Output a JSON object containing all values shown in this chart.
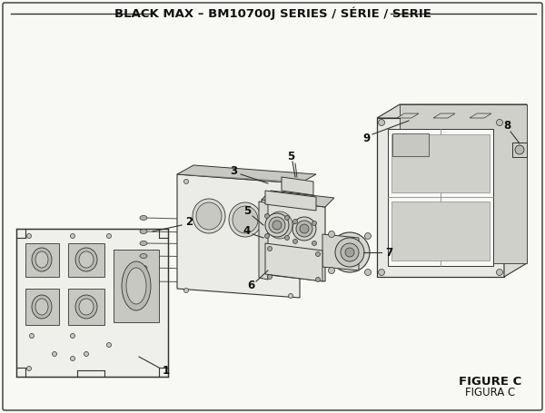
{
  "title": "BLACK MAX – BM10700J SERIES / SÉRIE / SERIE",
  "figure_label": "FIGURE C",
  "figura_label": "FIGURA C",
  "bg_color": "#f8f8f5",
  "border_color": "#333333",
  "line_color": "#333333",
  "fill_light": "#f0f0ec",
  "fill_mid": "#e0e0db",
  "fill_dark": "#c8c8c3",
  "text_color": "#111111",
  "title_fontsize": 9.5,
  "label_fontsize": 8.5
}
